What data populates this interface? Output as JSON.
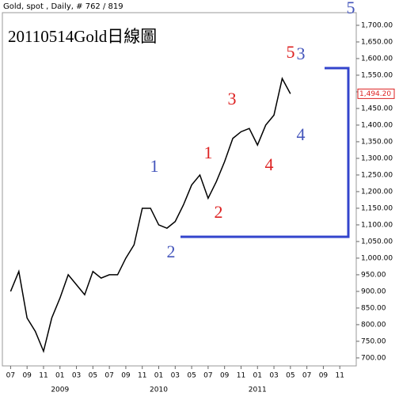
{
  "chart_data": {
    "type": "line",
    "header": "Gold, spot , Daily, # 762 / 819",
    "title": "20110514Gold日線圖",
    "x": [
      "2008-07",
      "2008-08",
      "2008-09",
      "2008-10",
      "2008-11",
      "2008-12",
      "2009-01",
      "2009-02",
      "2009-03",
      "2009-04",
      "2009-05",
      "2009-06",
      "2009-07",
      "2009-08",
      "2009-09",
      "2009-10",
      "2009-11",
      "2009-12",
      "2010-01",
      "2010-02",
      "2010-03",
      "2010-04",
      "2010-05",
      "2010-06",
      "2010-07",
      "2010-08",
      "2010-09",
      "2010-10",
      "2010-11",
      "2010-12",
      "2011-01",
      "2011-02",
      "2011-03",
      "2011-04",
      "2011-05"
    ],
    "series": [
      {
        "name": "Gold, spot",
        "color": "#000000",
        "values": [
          900,
          960,
          820,
          780,
          720,
          820,
          880,
          950,
          920,
          890,
          960,
          940,
          950,
          950,
          1000,
          1040,
          1150,
          1150,
          1100,
          1090,
          1110,
          1160,
          1220,
          1250,
          1180,
          1230,
          1290,
          1360,
          1380,
          1390,
          1340,
          1400,
          1430,
          1540,
          1494.2
        ]
      }
    ],
    "last_price_label": "1,494.20",
    "xticks": [
      {
        "value": "2008-07",
        "label": "07"
      },
      {
        "value": "2008-09",
        "label": "09"
      },
      {
        "value": "2008-11",
        "label": "11"
      },
      {
        "value": "2009-01",
        "label": "01"
      },
      {
        "value": "2009-03",
        "label": "03"
      },
      {
        "value": "2009-05",
        "label": "05"
      },
      {
        "value": "2009-07",
        "label": "07"
      },
      {
        "value": "2009-09",
        "label": "09"
      },
      {
        "value": "2009-11",
        "label": "11"
      },
      {
        "value": "2010-01",
        "label": "01"
      },
      {
        "value": "2010-03",
        "label": "03"
      },
      {
        "value": "2010-05",
        "label": "05"
      },
      {
        "value": "2010-07",
        "label": "07"
      },
      {
        "value": "2010-09",
        "label": "09"
      },
      {
        "value": "2010-11",
        "label": "11"
      },
      {
        "value": "2011-01",
        "label": "01"
      },
      {
        "value": "2011-03",
        "label": "03"
      },
      {
        "value": "2011-05",
        "label": "05"
      },
      {
        "value": "2011-07",
        "label": "07"
      },
      {
        "value": "2011-09",
        "label": "09"
      },
      {
        "value": "2011-11",
        "label": "11"
      }
    ],
    "years": [
      {
        "value": "2009-01",
        "label": "2009"
      },
      {
        "value": "2010-01",
        "label": "2010"
      },
      {
        "value": "2011-01",
        "label": "2011"
      }
    ],
    "xlim": [
      "2008-06",
      "2012-01"
    ],
    "ylim": [
      676,
      1738
    ],
    "yticks": [
      {
        "value": 700,
        "label": "700.00"
      },
      {
        "value": 750,
        "label": "750.00"
      },
      {
        "value": 800,
        "label": "800.00"
      },
      {
        "value": 850,
        "label": "850.00"
      },
      {
        "value": 900,
        "label": "900.00"
      },
      {
        "value": 950,
        "label": "950.00"
      },
      {
        "value": 1000,
        "label": "1,000.00"
      },
      {
        "value": 1050,
        "label": "1,050.00"
      },
      {
        "value": 1100,
        "label": "1,100.00"
      },
      {
        "value": 1150,
        "label": "1,150.00"
      },
      {
        "value": 1200,
        "label": "1,200.00"
      },
      {
        "value": 1250,
        "label": "1,250.00"
      },
      {
        "value": 1300,
        "label": "1,300.00"
      },
      {
        "value": 1350,
        "label": "1,350.00"
      },
      {
        "value": 1400,
        "label": "1,400.00"
      },
      {
        "value": 1450,
        "label": "1,450.00"
      },
      {
        "value": 1500,
        "label": "1,500.00"
      },
      {
        "value": 1550,
        "label": "1,550.00"
      },
      {
        "value": 1600,
        "label": "1,600.00"
      },
      {
        "value": 1650,
        "label": "1,650.00"
      },
      {
        "value": 1700,
        "label": "1,700.00"
      }
    ],
    "annotations": {
      "red": [
        "1",
        "2",
        "3",
        "4",
        "5"
      ],
      "blue": [
        "1",
        "2",
        "3",
        "4",
        "5"
      ]
    }
  }
}
